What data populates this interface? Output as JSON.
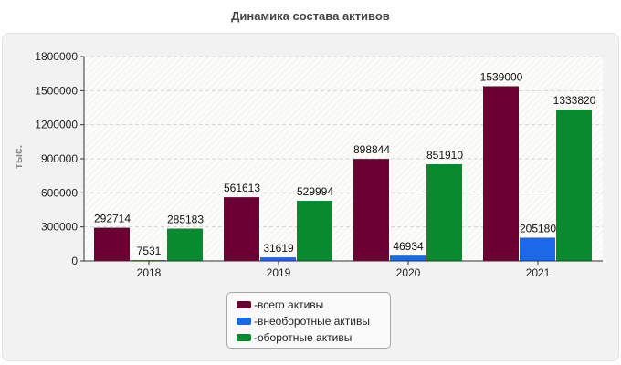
{
  "chart_data": {
    "type": "bar",
    "title": "Динамика состава активов",
    "xlabel": "",
    "ylabel": "тыс.",
    "ylim": [
      0,
      1800000
    ],
    "yticks": [
      "0",
      "300000",
      "600000",
      "900000",
      "1200000",
      "1500000",
      "1800000"
    ],
    "categories": [
      "2018",
      "2019",
      "2020",
      "2021"
    ],
    "series": [
      {
        "name": "всего активы",
        "color": "#6b0033",
        "values": [
          292714,
          561613,
          898844,
          1539000
        ]
      },
      {
        "name": "внеоборотные активы",
        "color": "#1a6ae8",
        "values": [
          7531,
          31619,
          46934,
          205180
        ]
      },
      {
        "name": "оборотные активы",
        "color": "#0a8a2e",
        "values": [
          285183,
          529994,
          851910,
          1333820
        ]
      }
    ],
    "legend_prefix": "- ",
    "legend_position": "bottom-center"
  }
}
